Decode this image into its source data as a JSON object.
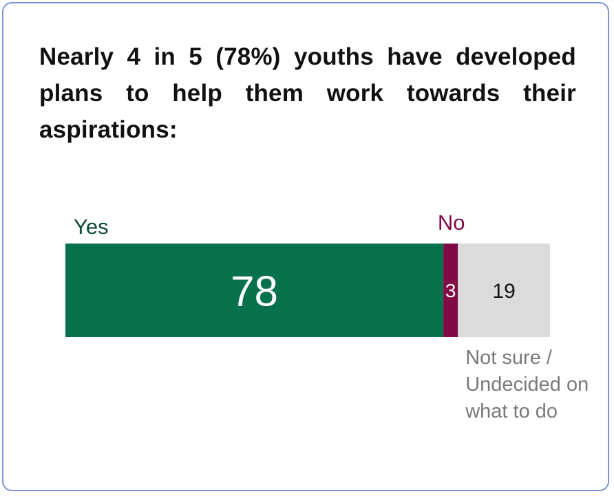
{
  "title": "Nearly 4 in 5 (78%) youths have developed plans to help them work towards their aspirations:",
  "chart_data": {
    "type": "bar",
    "orientation": "horizontal",
    "stacked": true,
    "xlim": [
      0,
      100
    ],
    "series": [
      {
        "name": "Yes",
        "value": 78,
        "color": "#07714b",
        "label_color": "#0c4a33",
        "value_color": "#ffffff"
      },
      {
        "name": "No",
        "value": 3,
        "color": "#820a44",
        "label_color": "#820a44",
        "value_color": "#ffffff"
      },
      {
        "name": "Not sure / Undecided on what to do",
        "value": 19,
        "color": "#dbdbdb",
        "label_color": "#7a7a7a",
        "value_color": "#111111"
      }
    ]
  }
}
